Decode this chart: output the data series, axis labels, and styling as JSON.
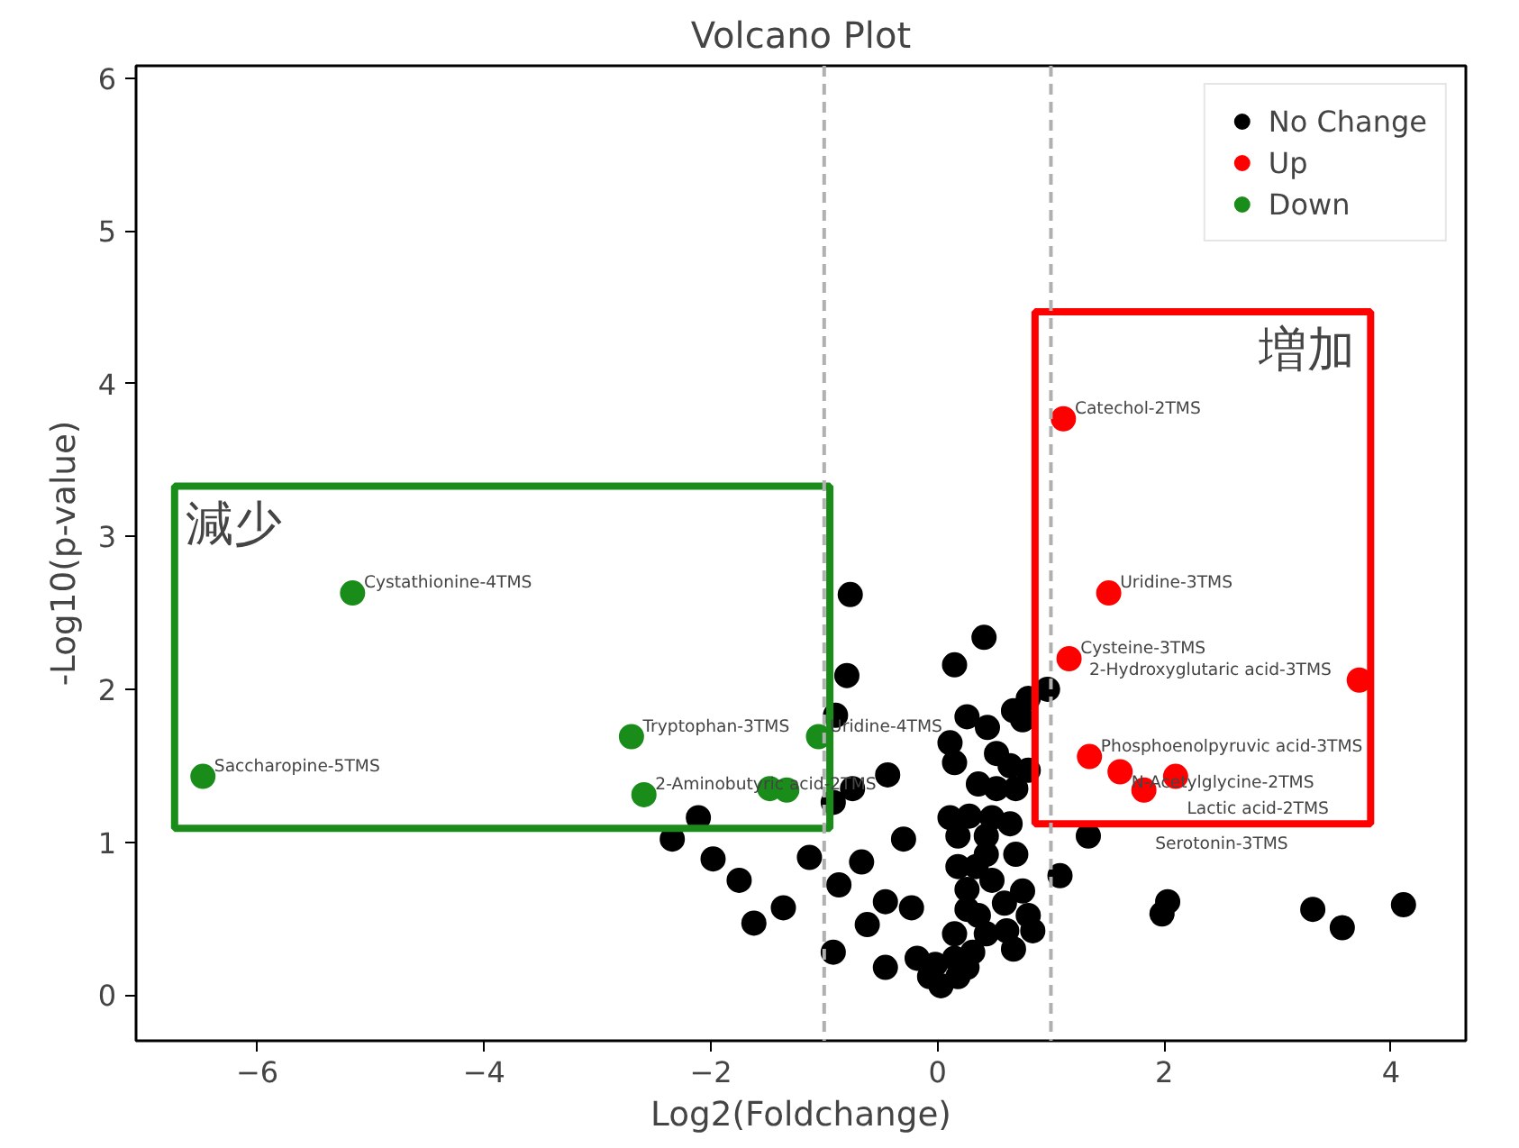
{
  "chart_data": {
    "type": "scatter",
    "title": "Volcano Plot",
    "xlabel": "Log2(Foldchange)",
    "ylabel": "-Log10(p-value)",
    "xlim": [
      -7.07,
      4.66
    ],
    "ylim": [
      -0.3,
      6.08
    ],
    "xticks": [
      {
        "value": -6,
        "label": "−6"
      },
      {
        "value": -4,
        "label": "−4"
      },
      {
        "value": -2,
        "label": "−2"
      },
      0,
      2,
      4
    ],
    "yticks": [
      0,
      1,
      2,
      3,
      4,
      5,
      6
    ],
    "grid": false,
    "legend": "top right",
    "marker": "circle",
    "ref_lines": [
      {
        "axis": "x",
        "value": -1,
        "label": null,
        "color": "#b0b0b0",
        "line_style": "dashed"
      },
      {
        "axis": "x",
        "value": 1,
        "label": null,
        "color": "#b0b0b0",
        "line_style": "dashed"
      }
    ],
    "annotations": [
      "減少",
      "増加"
    ],
    "series": [
      {
        "name": "No Change",
        "color": "#000000",
        "x": [
          -0.77,
          -0.8,
          -0.9,
          0.41,
          0.15,
          0.26,
          0.44,
          0.67,
          0.8,
          0.97,
          0.75,
          0.11,
          0.15,
          0.52,
          0.64,
          0.8,
          -0.44,
          -0.75,
          -0.92,
          0.36,
          0.52,
          0.69,
          0.11,
          0.28,
          0.48,
          0.64,
          -2.11,
          -2.34,
          -1.98,
          -1.75,
          -1.36,
          -1.62,
          -1.13,
          -0.3,
          -0.67,
          -0.87,
          -0.46,
          -0.23,
          -0.62,
          -0.92,
          -0.46,
          0.18,
          0.43,
          0.69,
          0.48,
          0.75,
          0.59,
          0.8,
          0.26,
          0.15,
          0.43,
          0.61,
          0.84,
          1.08,
          1.33,
          -0.18,
          -0.02,
          0.15,
          0.31,
          -0.07,
          0.03,
          0.18,
          0.26,
          0.67,
          0.36,
          0.26,
          0.34,
          0.18,
          0.43,
          2.03,
          1.98,
          3.31,
          3.57,
          4.11
        ],
        "values": [
          2.62,
          2.09,
          1.83,
          2.34,
          2.16,
          1.82,
          1.75,
          1.86,
          1.94,
          2.0,
          1.8,
          1.65,
          1.52,
          1.58,
          1.5,
          1.47,
          1.44,
          1.35,
          1.26,
          1.38,
          1.35,
          1.35,
          1.16,
          1.17,
          1.16,
          1.12,
          1.16,
          1.02,
          0.89,
          0.75,
          0.57,
          0.47,
          0.9,
          1.02,
          0.87,
          0.72,
          0.61,
          0.57,
          0.46,
          0.28,
          0.18,
          0.84,
          0.92,
          0.92,
          0.75,
          0.68,
          0.6,
          0.52,
          0.56,
          0.4,
          0.4,
          0.42,
          0.42,
          0.78,
          1.04,
          0.24,
          0.2,
          0.24,
          0.28,
          0.12,
          0.06,
          0.12,
          0.18,
          0.3,
          0.52,
          0.69,
          0.84,
          1.04,
          1.04,
          0.61,
          0.53,
          0.56,
          0.44,
          0.59
        ]
      },
      {
        "name": "Up",
        "color": "#ff0000",
        "x": [
          1.11,
          1.51,
          1.16,
          3.72,
          1.34,
          1.61,
          2.1,
          1.82
        ],
        "values": [
          3.77,
          2.63,
          2.2,
          2.06,
          1.56,
          1.46,
          1.43,
          1.34
        ],
        "value_labels": [
          "Catechol-2TMS",
          "Uridine-3TMS",
          "Cysteine-3TMS",
          "2-Hydroxyglutaric acid-3TMS",
          "Phosphoenolpyruvic acid-3TMS",
          "N-Acetylglycine-2TMS",
          "Lactic acid-2TMS",
          "Serotonin-3TMS"
        ]
      },
      {
        "name": "Down",
        "color": "#1a8c1a",
        "x": [
          -5.16,
          -6.48,
          -2.7,
          -1.05,
          -2.59,
          -1.48,
          -1.33
        ],
        "values": [
          2.63,
          1.43,
          1.69,
          1.69,
          1.31,
          1.35,
          1.34
        ],
        "value_labels": [
          "Cystathionine-4TMS",
          "Saccharopine-5TMS",
          "Tryptophan-3TMS",
          "Uridine-4TMS",
          "2-Aminobutyric acid-2TMS",
          null,
          null
        ]
      }
    ]
  }
}
